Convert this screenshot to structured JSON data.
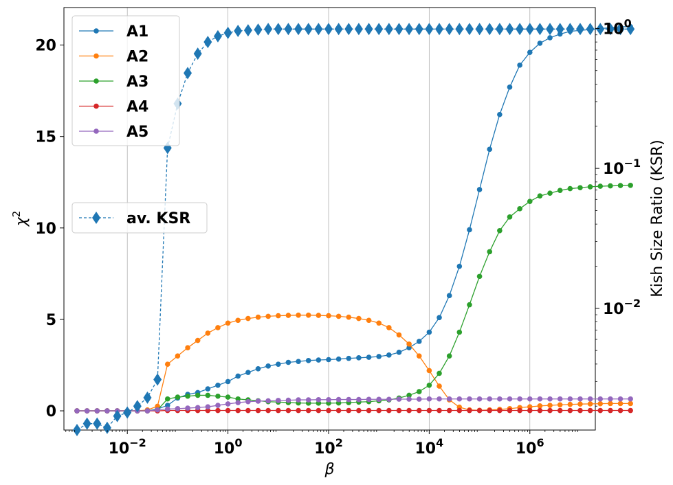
{
  "chart_data": {
    "type": "line",
    "x_label": "β",
    "y_label": "χ",
    "y_label_sup": "2",
    "y2_label": "Kish Size Ratio (KSR)",
    "x_scale": "log",
    "x_range": [
      0.00055,
      20000000
    ],
    "x_ticks": [
      {
        "value": 0.01,
        "base": "10",
        "exp": "−2"
      },
      {
        "value": 1,
        "base": "10",
        "exp": "0"
      },
      {
        "value": 100,
        "base": "10",
        "exp": "2"
      },
      {
        "value": 10000,
        "base": "10",
        "exp": "4"
      },
      {
        "value": 1000000,
        "base": "10",
        "exp": "6"
      }
    ],
    "y_range": [
      -1.05,
      22.05
    ],
    "y_ticks": [
      {
        "value": 0,
        "label": "0"
      },
      {
        "value": 5,
        "label": "5"
      },
      {
        "value": 10,
        "label": "10"
      },
      {
        "value": 15,
        "label": "15"
      },
      {
        "value": 20,
        "label": "20"
      }
    ],
    "y2_scale": "log",
    "y2_range": [
      0.00135,
      1.41
    ],
    "y2_ticks": [
      {
        "value": 1,
        "base": "10",
        "exp": "0"
      },
      {
        "value": 0.1,
        "base": "10",
        "exp": "−1"
      },
      {
        "value": 0.01,
        "base": "10",
        "exp": "−2"
      }
    ],
    "grid": "x-major",
    "legend_placement": [
      "upper-left",
      "center-left"
    ],
    "log_x_start": -3,
    "log_x_step": 0.2,
    "series": [
      {
        "name": "A1",
        "color": "#1f77b4",
        "marker": "circle",
        "axis": "left",
        "values": [
          0.0,
          0.0,
          0.0,
          0.0,
          0.0,
          0.0,
          0.0,
          0.0,
          0.1,
          0.3,
          0.7,
          0.9,
          1.0,
          1.2,
          1.4,
          1.6,
          1.9,
          2.1,
          2.3,
          2.45,
          2.55,
          2.65,
          2.7,
          2.75,
          2.78,
          2.8,
          2.83,
          2.87,
          2.9,
          2.93,
          2.97,
          3.05,
          3.2,
          3.45,
          3.8,
          4.3,
          5.1,
          6.3,
          7.9,
          9.9,
          12.1,
          14.3,
          16.2,
          17.7,
          18.9,
          19.6,
          20.1,
          20.4,
          20.6,
          20.75,
          20.8,
          20.85,
          20.9,
          20.95,
          21.0,
          21.0
        ]
      },
      {
        "name": "A2",
        "color": "#ff7f0e",
        "marker": "circle",
        "axis": "left",
        "values": [
          0.0,
          0.0,
          0.0,
          0.0,
          0.0,
          0.0,
          0.0,
          0.05,
          0.25,
          2.55,
          3.0,
          3.45,
          3.85,
          4.25,
          4.55,
          4.8,
          4.95,
          5.05,
          5.12,
          5.17,
          5.2,
          5.22,
          5.23,
          5.23,
          5.22,
          5.2,
          5.17,
          5.12,
          5.05,
          4.95,
          4.8,
          4.55,
          4.15,
          3.65,
          3.0,
          2.2,
          1.35,
          0.6,
          0.2,
          0.05,
          0.03,
          0.05,
          0.08,
          0.12,
          0.18,
          0.22,
          0.27,
          0.3,
          0.33,
          0.35,
          0.37,
          0.38,
          0.39,
          0.4,
          0.4,
          0.4
        ]
      },
      {
        "name": "A3",
        "color": "#2ca02c",
        "marker": "circle",
        "axis": "left",
        "values": [
          0.0,
          0.0,
          0.0,
          0.0,
          0.0,
          0.0,
          0.0,
          0.0,
          0.05,
          0.65,
          0.75,
          0.8,
          0.85,
          0.85,
          0.8,
          0.75,
          0.65,
          0.6,
          0.55,
          0.5,
          0.48,
          0.45,
          0.43,
          0.42,
          0.42,
          0.42,
          0.43,
          0.45,
          0.48,
          0.5,
          0.55,
          0.6,
          0.7,
          0.85,
          1.05,
          1.4,
          2.05,
          3.0,
          4.3,
          5.8,
          7.35,
          8.7,
          9.85,
          10.6,
          11.05,
          11.45,
          11.75,
          11.9,
          12.05,
          12.15,
          12.2,
          12.25,
          12.28,
          12.3,
          12.32,
          12.33
        ]
      },
      {
        "name": "A4",
        "color": "#d62728",
        "marker": "circle",
        "axis": "left",
        "values": [
          0.0,
          0.0,
          0.0,
          0.0,
          0.0,
          0.0,
          0.0,
          0.0,
          0.0,
          0.02,
          0.02,
          0.02,
          0.02,
          0.02,
          0.02,
          0.02,
          0.02,
          0.02,
          0.02,
          0.02,
          0.02,
          0.02,
          0.02,
          0.02,
          0.02,
          0.02,
          0.02,
          0.02,
          0.02,
          0.02,
          0.02,
          0.02,
          0.02,
          0.02,
          0.02,
          0.02,
          0.02,
          0.02,
          0.02,
          0.02,
          0.02,
          0.02,
          0.02,
          0.02,
          0.02,
          0.02,
          0.02,
          0.02,
          0.02,
          0.02,
          0.02,
          0.02,
          0.02,
          0.02,
          0.02,
          0.02
        ]
      },
      {
        "name": "A5",
        "color": "#9467bd",
        "marker": "circle",
        "axis": "left",
        "values": [
          0.0,
          0.0,
          0.0,
          0.0,
          0.0,
          0.0,
          0.0,
          0.0,
          0.05,
          0.1,
          0.12,
          0.15,
          0.18,
          0.22,
          0.3,
          0.38,
          0.45,
          0.5,
          0.53,
          0.55,
          0.57,
          0.58,
          0.6,
          0.6,
          0.61,
          0.61,
          0.62,
          0.62,
          0.62,
          0.63,
          0.63,
          0.63,
          0.64,
          0.64,
          0.64,
          0.65,
          0.65,
          0.65,
          0.65,
          0.65,
          0.65,
          0.65,
          0.65,
          0.65,
          0.65,
          0.65,
          0.65,
          0.65,
          0.65,
          0.65,
          0.65,
          0.65,
          0.65,
          0.65,
          0.65,
          0.65
        ]
      },
      {
        "name": "av. KSR",
        "color": "#1f77b4",
        "marker": "diamond",
        "dashed": true,
        "axis": "right",
        "values": [
          0.00135,
          0.0015,
          0.0015,
          0.0014,
          0.0017,
          0.0018,
          0.002,
          0.0023,
          0.0031,
          0.14,
          0.29,
          0.48,
          0.66,
          0.8,
          0.88,
          0.93,
          0.96,
          0.97,
          0.98,
          0.99,
          0.99,
          0.99,
          0.99,
          0.99,
          0.99,
          0.99,
          0.99,
          0.99,
          0.99,
          0.99,
          0.99,
          0.99,
          0.99,
          0.99,
          0.99,
          0.99,
          0.99,
          0.99,
          0.99,
          0.99,
          0.99,
          0.99,
          0.99,
          0.99,
          0.99,
          0.99,
          0.99,
          0.99,
          0.99,
          0.99,
          0.99,
          0.99,
          0.99,
          0.99,
          0.99,
          0.99
        ]
      }
    ]
  }
}
